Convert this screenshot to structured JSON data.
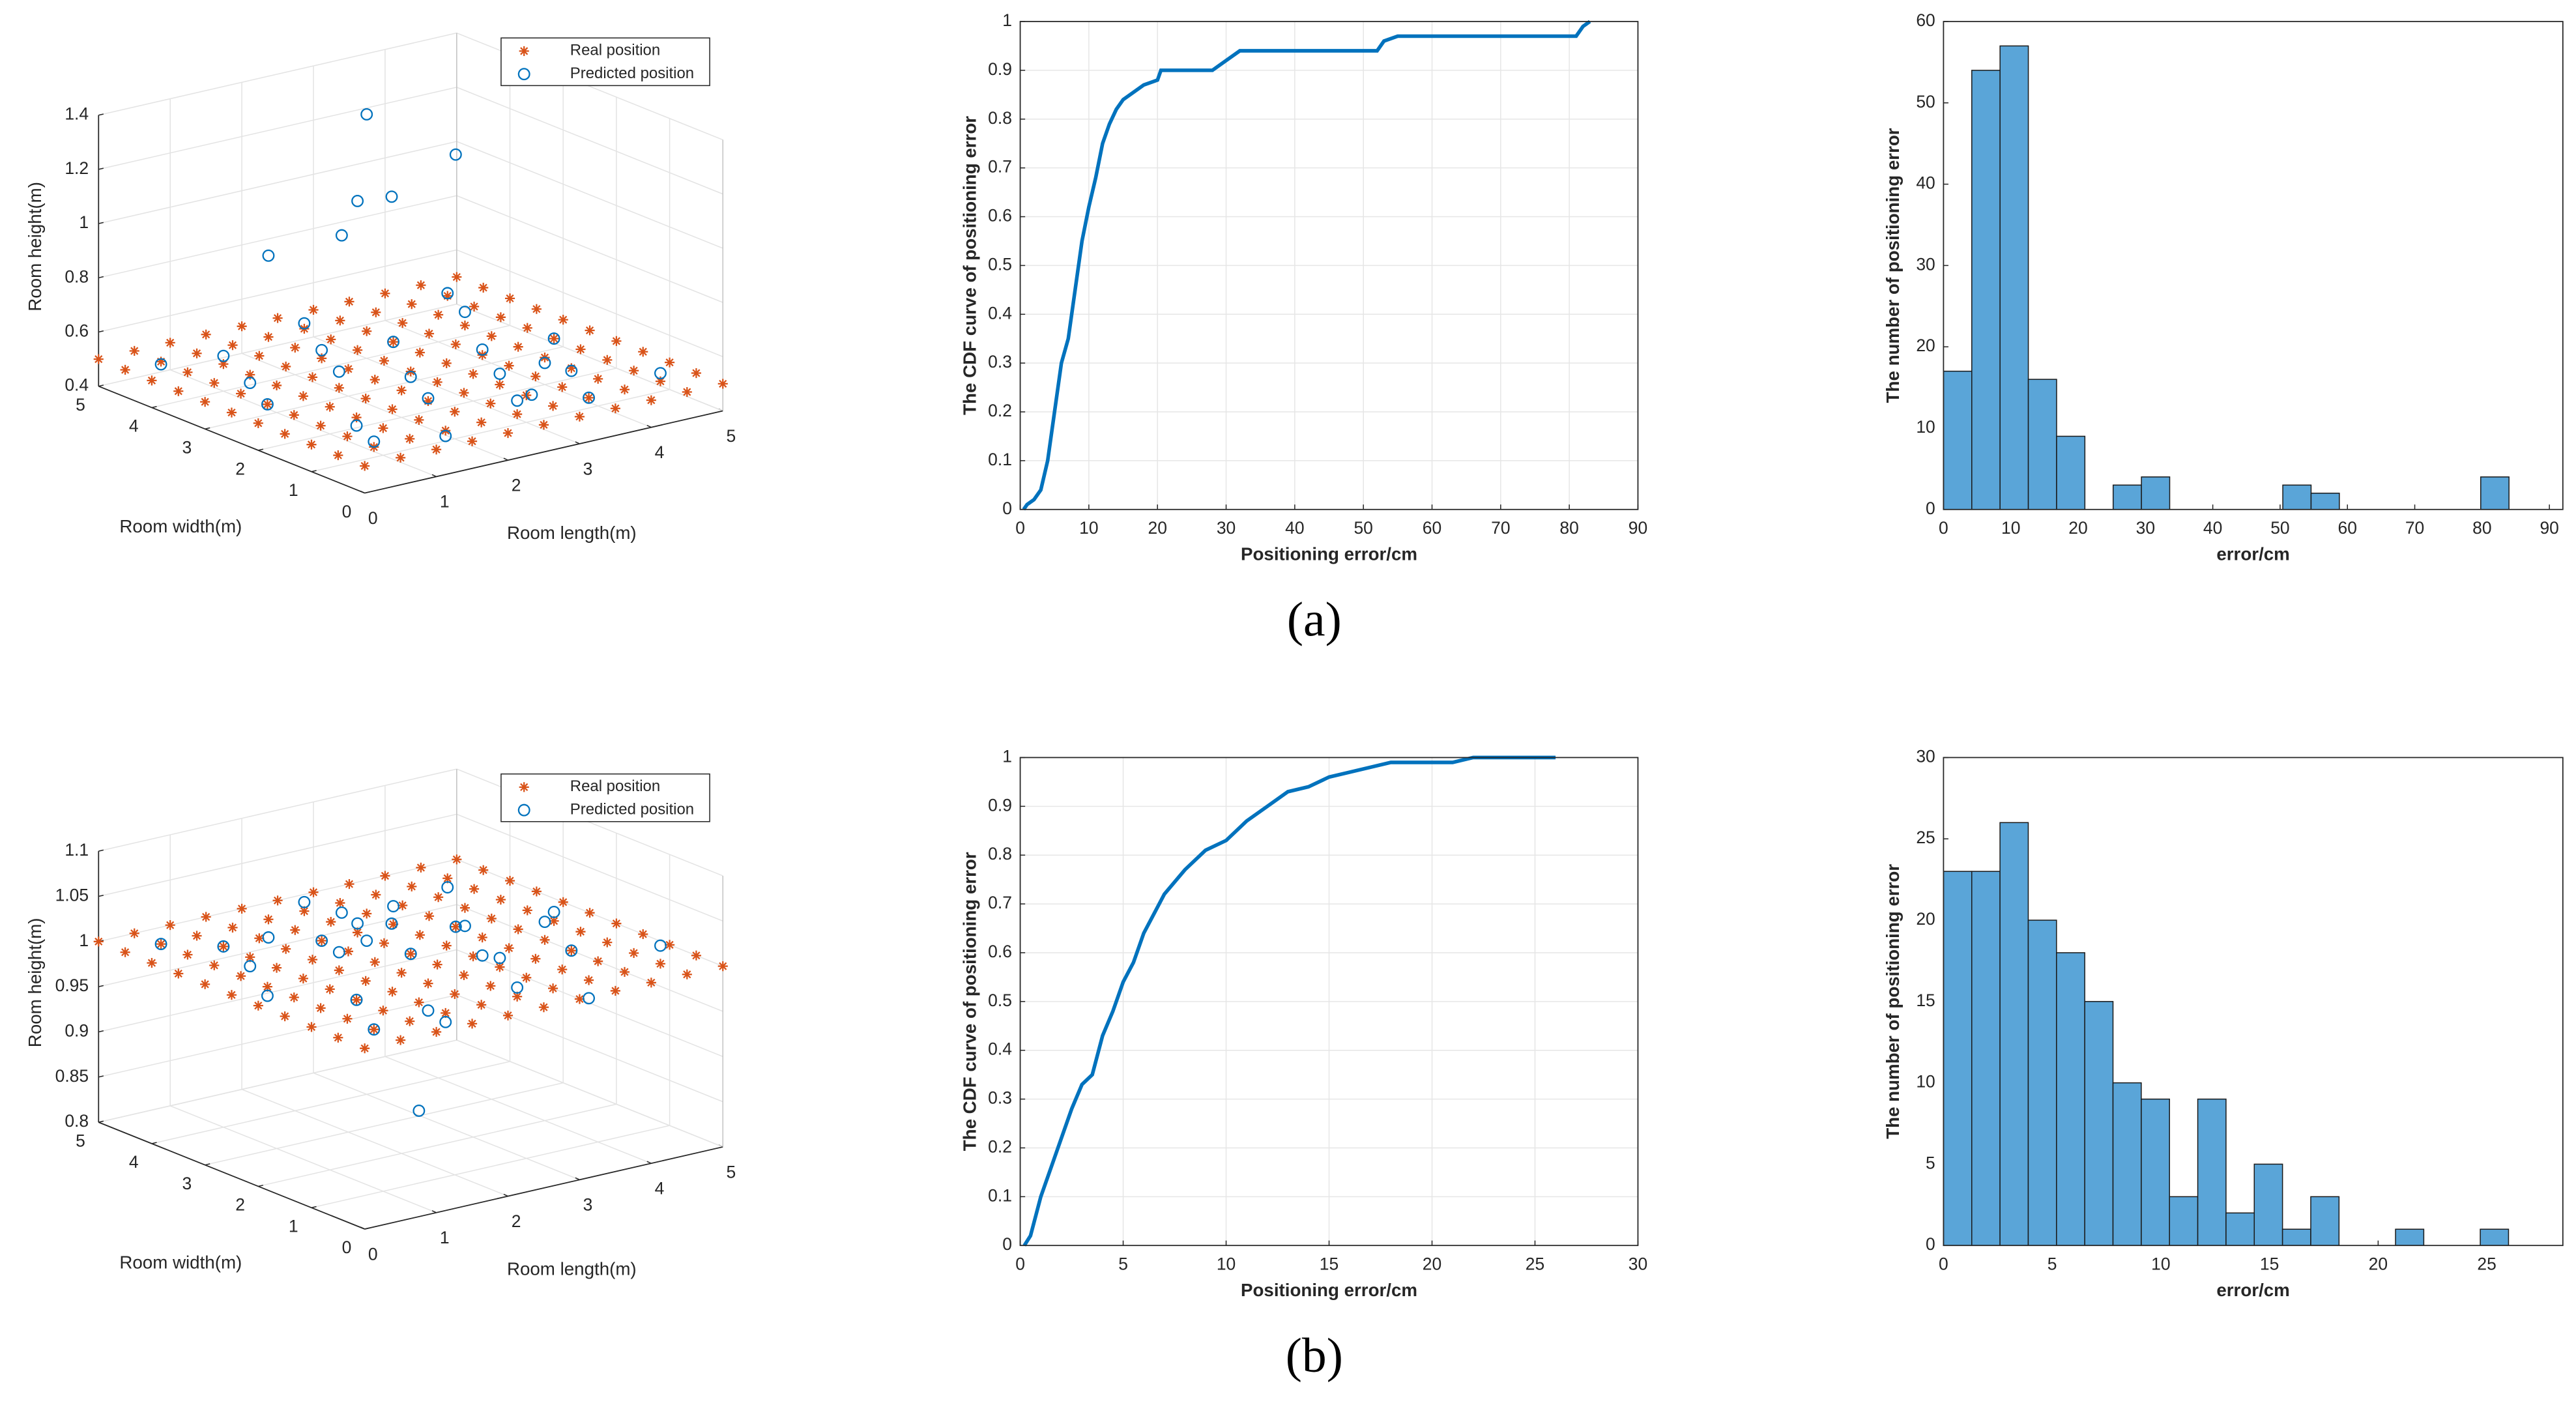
{
  "chart_data": [
    {
      "type": "scatter3d",
      "xlabel": "Room length(m)",
      "ylabel": "Room width(m)",
      "zlabel": "Room height(m)",
      "xlim": [
        0,
        5
      ],
      "ylim": [
        0,
        5
      ],
      "zlim": [
        0.4,
        1.4
      ],
      "xticks": [
        0,
        1,
        2,
        3,
        4,
        5
      ],
      "yticks": [
        0,
        1,
        2,
        3,
        4,
        5
      ],
      "zticks": [
        0.4,
        0.6,
        0.8,
        1,
        1.2,
        1.4
      ],
      "grid": true,
      "legend": "northeast",
      "series": [
        {
          "name": "Real position",
          "color": "#d95319",
          "marker": "asterisk",
          "grid_x": [
            0,
            0.5,
            1,
            1.5,
            2,
            2.5,
            3,
            3.5,
            4,
            4.5,
            5
          ],
          "grid_y": [
            0,
            0.5,
            1,
            1.5,
            2,
            2.5,
            3,
            3.5,
            4,
            4.5,
            5
          ],
          "z": 0.5
        },
        {
          "name": "Predicted position",
          "color": "#0072bd",
          "marker": "circle",
          "x": [
            0.5,
            1.5,
            2.5,
            3.5,
            4.5,
            1,
            2,
            3,
            4,
            0.5,
            1.5,
            2.5,
            3.5,
            4.5,
            1,
            2,
            3,
            4,
            0.5,
            2.5,
            4.5,
            3,
            3.5,
            2.5,
            3.2,
            2.8,
            2,
            4,
            1,
            3
          ],
          "y": [
            0.5,
            0.5,
            0.5,
            0.5,
            0.5,
            1.5,
            1.5,
            1.5,
            1.5,
            2.5,
            2.5,
            2.5,
            2.5,
            2.5,
            3.5,
            3.5,
            3.5,
            3.5,
            4.5,
            4.5,
            4.5,
            4,
            3,
            3.5,
            3.8,
            4.2,
            4.5,
            2,
            4,
            0.9
          ],
          "z": [
            0.52,
            0.48,
            0.55,
            0.5,
            0.53,
            0.47,
            0.51,
            0.54,
            0.49,
            0.5,
            0.56,
            0.48,
            0.52,
            0.5,
            0.47,
            0.53,
            0.5,
            0.55,
            0.49,
            0.52,
            0.51,
            1.3,
            1.2,
            1.05,
            1.0,
            0.85,
            0.8,
            0.48,
            0.53,
            0.51
          ]
        }
      ]
    },
    {
      "type": "line",
      "xlabel": "Positioning error/cm",
      "ylabel": "The CDF curve of positioning error",
      "xlim": [
        0,
        90
      ],
      "ylim": [
        0,
        1
      ],
      "xticks": [
        0,
        10,
        20,
        30,
        40,
        50,
        60,
        70,
        80,
        90
      ],
      "yticks": [
        0,
        0.1,
        0.2,
        0.3,
        0.4,
        0.5,
        0.6,
        0.7,
        0.8,
        0.9,
        1
      ],
      "grid": true,
      "color": "#0072bd",
      "x": [
        0.5,
        1,
        2,
        3,
        4,
        5,
        6,
        7,
        8,
        9,
        10,
        11,
        12,
        13,
        14,
        15,
        16,
        17,
        18,
        20,
        20.5,
        28,
        30,
        32,
        52,
        53,
        55,
        81,
        82,
        83
      ],
      "values": [
        0,
        0.01,
        0.02,
        0.04,
        0.1,
        0.2,
        0.3,
        0.35,
        0.45,
        0.55,
        0.62,
        0.68,
        0.75,
        0.79,
        0.82,
        0.84,
        0.85,
        0.86,
        0.87,
        0.88,
        0.9,
        0.9,
        0.92,
        0.94,
        0.94,
        0.96,
        0.97,
        0.97,
        0.99,
        1
      ]
    },
    {
      "type": "histogram",
      "xlabel": "error/cm",
      "ylabel": "The number of positioning error",
      "xlim": [
        0,
        92
      ],
      "ylim": [
        0,
        60
      ],
      "xticks": [
        0,
        10,
        20,
        30,
        40,
        50,
        60,
        70,
        80,
        90
      ],
      "yticks": [
        0,
        10,
        20,
        30,
        40,
        50,
        60
      ],
      "color": "#5aa5d8",
      "bins": [
        0,
        4.2,
        8.4,
        12.6,
        16.8,
        21,
        25.2,
        29.4,
        33.6,
        37.8,
        42,
        46.2,
        50.4,
        54.6,
        58.8,
        63,
        67.2,
        71.4,
        75.6,
        79.8,
        84
      ],
      "values": [
        17,
        54,
        57,
        16,
        9,
        0,
        3,
        4,
        0,
        0,
        0,
        0,
        3,
        2,
        0,
        0,
        0,
        0,
        0,
        4
      ]
    },
    {
      "type": "scatter3d",
      "xlabel": "Room length(m)",
      "ylabel": "Room width(m)",
      "zlabel": "Room height(m)",
      "xlim": [
        0,
        5
      ],
      "ylim": [
        0,
        5
      ],
      "zlim": [
        0.8,
        1.1
      ],
      "xticks": [
        0,
        1,
        2,
        3,
        4,
        5
      ],
      "yticks": [
        0,
        1,
        2,
        3,
        4,
        5
      ],
      "zticks": [
        0.8,
        0.85,
        0.9,
        0.95,
        1,
        1.05,
        1.1
      ],
      "grid": true,
      "legend": "northeast",
      "series": [
        {
          "name": "Real position",
          "color": "#d95319",
          "marker": "asterisk",
          "grid_x": [
            0,
            0.5,
            1,
            1.5,
            2,
            2.5,
            3,
            3.5,
            4,
            4.5,
            5
          ],
          "grid_y": [
            0,
            0.5,
            1,
            1.5,
            2,
            2.5,
            3,
            3.5,
            4,
            4.5,
            5
          ],
          "z": 1
        },
        {
          "name": "Predicted position",
          "color": "#0072bd",
          "marker": "circle",
          "x": [
            0.5,
            1.5,
            2.5,
            3.5,
            4.5,
            1,
            2,
            3,
            4,
            0.5,
            1.5,
            2.5,
            3.5,
            4.5,
            1,
            2,
            3,
            4,
            0.5,
            2.5,
            4.5,
            3,
            3.5,
            2.5,
            3.2,
            2.8,
            2,
            4,
            1,
            1.5
          ],
          "y": [
            0.5,
            0.5,
            0.5,
            0.5,
            0.5,
            1.5,
            1.5,
            1.5,
            1.5,
            2.5,
            2.5,
            2.5,
            2.5,
            2.5,
            3.5,
            3.5,
            3.5,
            3.5,
            4.5,
            4.5,
            4.5,
            4,
            3,
            3.5,
            3.8,
            4.2,
            4.5,
            2,
            4,
            1
          ],
          "z": [
            1.0,
            0.99,
            1.01,
            0.98,
            1.02,
            1.0,
            0.97,
            1.01,
            1.0,
            0.99,
            1.02,
            1.0,
            0.98,
            1.01,
            0.99,
            1.0,
            1.02,
            0.98,
            1.0,
            1.01,
            0.99,
            0.97,
            1.0,
            1.01,
            0.99,
            1.0,
            0.98,
            1.02,
            1.0,
            0.88
          ]
        }
      ]
    },
    {
      "type": "line",
      "xlabel": "Positioning error/cm",
      "ylabel": "The CDF curve of positioning error",
      "xlim": [
        0,
        30
      ],
      "ylim": [
        0,
        1
      ],
      "xticks": [
        0,
        5,
        10,
        15,
        20,
        25,
        30
      ],
      "yticks": [
        0,
        0.1,
        0.2,
        0.3,
        0.4,
        0.5,
        0.6,
        0.7,
        0.8,
        0.9,
        1
      ],
      "grid": true,
      "color": "#0072bd",
      "x": [
        0.2,
        0.5,
        1,
        1.5,
        2,
        2.5,
        3,
        3.5,
        4,
        4.5,
        5,
        5.5,
        6,
        6.5,
        7,
        8,
        9,
        10,
        11,
        12,
        13,
        14,
        15,
        16,
        17,
        18,
        21,
        22,
        26
      ],
      "values": [
        0,
        0.02,
        0.1,
        0.16,
        0.22,
        0.28,
        0.33,
        0.35,
        0.43,
        0.48,
        0.54,
        0.58,
        0.64,
        0.68,
        0.72,
        0.77,
        0.81,
        0.83,
        0.87,
        0.9,
        0.93,
        0.94,
        0.96,
        0.97,
        0.98,
        0.99,
        0.99,
        1,
        1
      ]
    },
    {
      "type": "histogram",
      "xlabel": "error/cm",
      "ylabel": "The number of positioning error",
      "xlim": [
        0,
        28.5
      ],
      "ylim": [
        0,
        30
      ],
      "xticks": [
        0,
        5,
        10,
        15,
        20,
        25
      ],
      "yticks": [
        0,
        5,
        10,
        15,
        20,
        25,
        30
      ],
      "color": "#5aa5d8",
      "bins": [
        0,
        1.3,
        2.6,
        3.9,
        5.2,
        6.5,
        7.8,
        9.1,
        10.4,
        11.7,
        13,
        14.3,
        15.6,
        16.9,
        18.2,
        19.5,
        20.8,
        22.1,
        23.4,
        24.7,
        26
      ],
      "values": [
        23,
        23,
        26,
        20,
        18,
        15,
        10,
        9,
        3,
        9,
        2,
        5,
        1,
        3,
        0,
        0,
        1,
        0,
        0,
        1
      ]
    }
  ],
  "captions": [
    "(a)",
    "(b)"
  ]
}
